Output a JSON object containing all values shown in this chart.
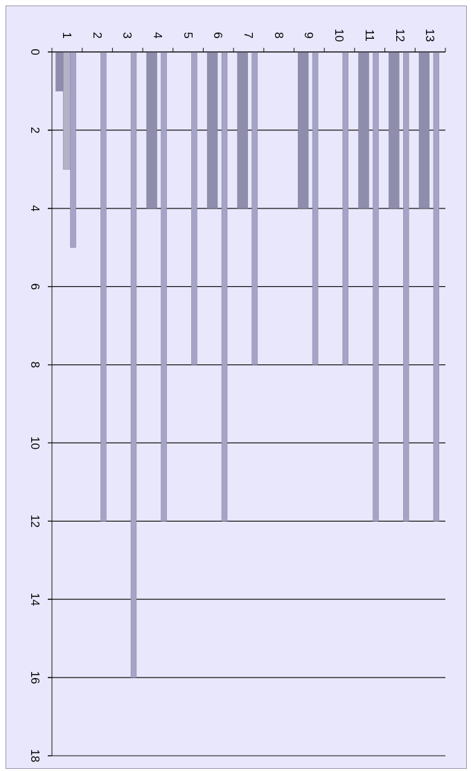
{
  "chart_data": {
    "type": "bar",
    "categories": [
      "1",
      "2",
      "3",
      "4",
      "5",
      "6",
      "7",
      "8",
      "9",
      "10",
      "11",
      "12",
      "13"
    ],
    "series": [
      {
        "color": "#8f8dac",
        "values": [
          1,
          null,
          null,
          4,
          null,
          4,
          4,
          null,
          4,
          null,
          4,
          4,
          4
        ]
      },
      {
        "color": "#b3b2c6",
        "values": [
          3,
          null,
          null,
          null,
          null,
          null,
          null,
          null,
          null,
          null,
          null,
          null,
          null
        ]
      },
      {
        "color": "#a6a4c6",
        "values": [
          5,
          12,
          16,
          12,
          8,
          12,
          8,
          null,
          8,
          8,
          12,
          12,
          12
        ]
      }
    ],
    "ylim": [
      18,
      0
    ],
    "yticks": [
      0,
      2,
      4,
      6,
      8,
      10,
      12,
      14,
      16,
      18
    ],
    "grid": "y"
  }
}
